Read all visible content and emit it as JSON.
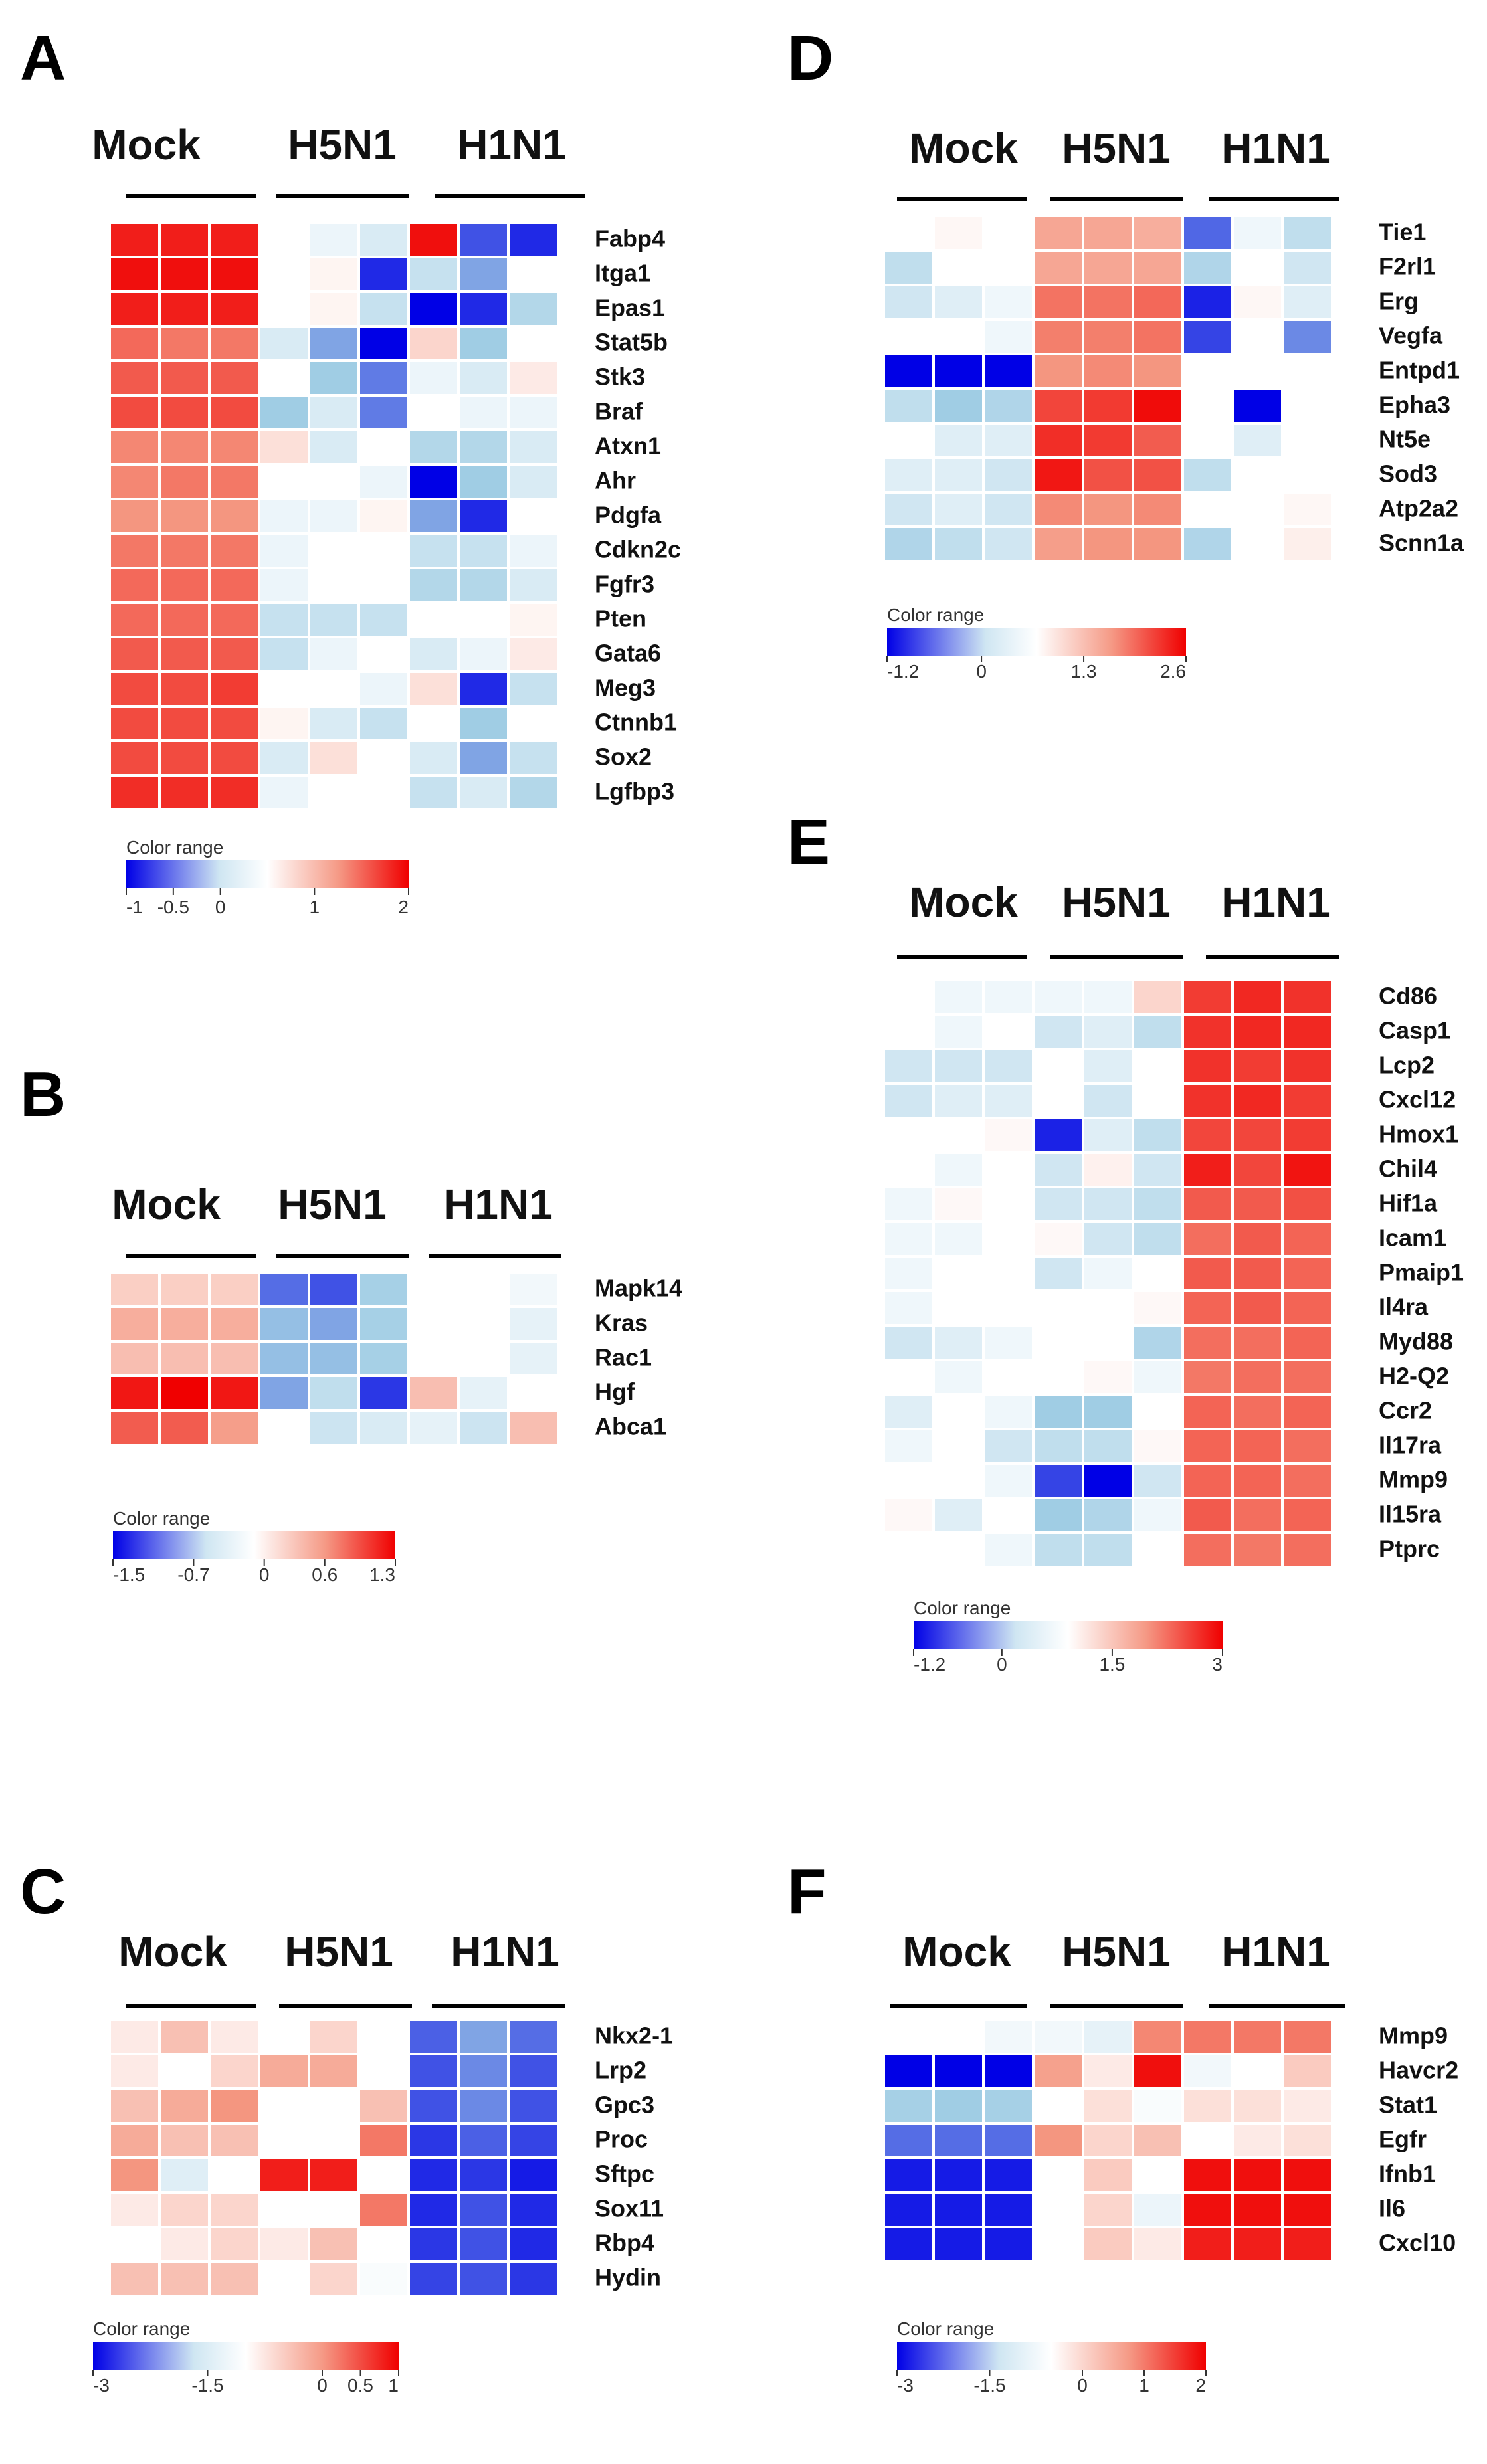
{
  "chart_data": [
    {
      "type": "heatmap",
      "panel": "A",
      "groups": [
        "Mock",
        "H5N1",
        "H1N1"
      ],
      "genes": [
        "Fabp4",
        "Itga1",
        "Epas1",
        "Stat5b",
        "Stk3",
        "Braf",
        "Atxn1",
        "Ahr",
        "Pdgfa",
        "Cdkn2c",
        "Fgfr3",
        "Pten",
        "Gata6",
        "Meg3",
        "Ctnnb1",
        "Sox2",
        "Lgfbp3"
      ],
      "values": [
        [
          1.8,
          1.8,
          1.8,
          0.0,
          -0.1,
          -0.2,
          1.9,
          -0.8,
          -0.9
        ],
        [
          1.9,
          1.9,
          1.9,
          0.0,
          0.1,
          -0.9,
          -0.3,
          -0.6,
          0.0
        ],
        [
          1.8,
          1.8,
          1.8,
          0.0,
          0.1,
          -0.3,
          -1.0,
          -0.9,
          -0.4
        ],
        [
          1.3,
          1.2,
          1.2,
          -0.2,
          -0.6,
          -1.0,
          0.4,
          -0.5,
          0.0
        ],
        [
          1.4,
          1.4,
          1.4,
          0.0,
          -0.5,
          -0.7,
          -0.1,
          -0.2,
          0.2
        ],
        [
          1.5,
          1.5,
          1.5,
          -0.5,
          -0.2,
          -0.7,
          0.0,
          -0.1,
          -0.1
        ],
        [
          1.1,
          1.1,
          1.1,
          0.3,
          -0.2,
          0.0,
          -0.4,
          -0.4,
          -0.2
        ],
        [
          1.1,
          1.2,
          1.2,
          0.0,
          0.0,
          -0.1,
          -1.0,
          -0.5,
          -0.2
        ],
        [
          1.0,
          1.0,
          1.0,
          -0.1,
          -0.1,
          0.1,
          -0.6,
          -0.9,
          0.0
        ],
        [
          1.2,
          1.2,
          1.2,
          -0.1,
          0.0,
          0.0,
          -0.3,
          -0.3,
          -0.1
        ],
        [
          1.3,
          1.3,
          1.3,
          -0.1,
          0.0,
          0.0,
          -0.4,
          -0.4,
          -0.2
        ],
        [
          1.3,
          1.3,
          1.3,
          -0.3,
          -0.3,
          -0.3,
          0.0,
          0.0,
          0.1
        ],
        [
          1.4,
          1.4,
          1.4,
          -0.3,
          -0.1,
          0.0,
          -0.2,
          -0.1,
          0.2
        ],
        [
          1.5,
          1.5,
          1.6,
          0.0,
          0.0,
          -0.1,
          0.3,
          -0.9,
          -0.3
        ],
        [
          1.5,
          1.5,
          1.5,
          0.1,
          -0.2,
          -0.3,
          0.0,
          -0.5,
          0.0
        ],
        [
          1.5,
          1.5,
          1.5,
          -0.2,
          0.3,
          0.0,
          -0.2,
          -0.6,
          -0.3
        ],
        [
          1.7,
          1.7,
          1.7,
          -0.1,
          0.0,
          0.0,
          -0.3,
          -0.2,
          -0.4
        ]
      ],
      "color_range": {
        "min": -1,
        "max": 2,
        "ticks": [
          "-1",
          "-0.5",
          "0",
          "1",
          "2"
        ],
        "tick_values": [
          -1,
          -0.5,
          0,
          1,
          2
        ]
      }
    },
    {
      "type": "heatmap",
      "panel": "B",
      "groups": [
        "Mock",
        "H5N1",
        "H1N1"
      ],
      "genes": [
        "Mapk14",
        "Kras",
        "Rac1",
        "Hgf",
        "Abca1"
      ],
      "values": [
        [
          0.3,
          0.3,
          0.3,
          -1.1,
          -1.2,
          -0.7,
          0.0,
          0.0,
          -0.1
        ],
        [
          0.5,
          0.5,
          0.5,
          -0.8,
          -0.9,
          -0.7,
          0.0,
          0.0,
          -0.2
        ],
        [
          0.4,
          0.4,
          0.4,
          -0.8,
          -0.8,
          -0.7,
          0.0,
          0.0,
          -0.2
        ],
        [
          1.2,
          1.3,
          1.2,
          -0.9,
          -0.5,
          -1.3,
          0.4,
          -0.2,
          0.0
        ],
        [
          0.9,
          0.9,
          0.6,
          0.0,
          -0.4,
          -0.3,
          -0.2,
          -0.4,
          0.4
        ]
      ],
      "color_range": {
        "min": -1.5,
        "max": 1.3,
        "ticks": [
          "-1.5",
          "-0.7",
          "0",
          "0.6",
          "1.3"
        ],
        "tick_values": [
          -1.5,
          -0.7,
          0,
          0.6,
          1.3
        ]
      }
    },
    {
      "type": "heatmap",
      "panel": "C",
      "groups": [
        "Mock",
        "H5N1",
        "H1N1"
      ],
      "genes": [
        "Nkx2-1",
        "Lrp2",
        "Gpc3",
        "Proc",
        "Sftpc",
        "Sox11",
        "Rbp4",
        "Hydin"
      ],
      "values": [
        [
          0.1,
          0.3,
          0.1,
          0.0,
          0.2,
          0.0,
          -2.3,
          -1.8,
          -2.2
        ],
        [
          0.1,
          0.0,
          0.2,
          0.4,
          0.4,
          0.0,
          -2.4,
          -2.0,
          -2.4
        ],
        [
          0.3,
          0.4,
          0.5,
          0.0,
          0.0,
          0.3,
          -2.4,
          -2.0,
          -2.4
        ],
        [
          0.4,
          0.3,
          0.3,
          0.0,
          0.0,
          0.6,
          -2.6,
          -2.3,
          -2.5
        ],
        [
          0.5,
          -0.5,
          0.0,
          0.9,
          0.9,
          0.0,
          -2.7,
          -2.6,
          -2.8
        ],
        [
          0.1,
          0.2,
          0.2,
          0.0,
          0.0,
          0.6,
          -2.7,
          -2.4,
          -2.7
        ],
        [
          0.0,
          0.1,
          0.2,
          0.1,
          0.3,
          0.0,
          -2.6,
          -2.4,
          -2.7
        ],
        [
          0.3,
          0.3,
          0.3,
          0.0,
          0.2,
          -0.1,
          -2.5,
          -2.4,
          -2.6
        ]
      ],
      "color_range": {
        "min": -3,
        "max": 1,
        "ticks": [
          "-3",
          "-1.5",
          "0",
          "0.5",
          "1"
        ],
        "tick_values": [
          -3,
          -1.5,
          0,
          0.5,
          1
        ]
      }
    },
    {
      "type": "heatmap",
      "panel": "D",
      "groups": [
        "Mock",
        "H5N1",
        "H1N1"
      ],
      "genes": [
        "Tie1",
        "F2rl1",
        "Erg",
        "Vegfa",
        "Entpd1",
        "Epha3",
        "Nt5e",
        "Sod3",
        "Atp2a2",
        "Scnn1a"
      ],
      "values": [
        [
          0.0,
          0.1,
          0.0,
          1.1,
          1.1,
          1.0,
          -0.9,
          -0.1,
          -0.4
        ],
        [
          -0.4,
          0.0,
          0.0,
          1.1,
          1.1,
          1.1,
          -0.5,
          0.0,
          -0.3
        ],
        [
          -0.3,
          -0.2,
          -0.1,
          1.6,
          1.6,
          1.7,
          -1.1,
          0.1,
          -0.2
        ],
        [
          0.0,
          0.0,
          -0.1,
          1.5,
          1.5,
          1.6,
          -1.0,
          0.0,
          -0.8
        ],
        [
          -1.2,
          -1.2,
          -1.2,
          1.3,
          1.4,
          1.3,
          0.0,
          0.0,
          0.0
        ],
        [
          -0.4,
          -0.6,
          -0.5,
          2.0,
          2.1,
          2.5,
          0.0,
          -1.2,
          0.0
        ],
        [
          0.0,
          -0.2,
          -0.2,
          2.2,
          2.1,
          1.8,
          0.0,
          -0.2,
          0.0
        ],
        [
          -0.2,
          -0.2,
          -0.3,
          2.4,
          1.9,
          1.9,
          -0.4,
          0.0,
          0.0
        ],
        [
          -0.3,
          -0.2,
          -0.3,
          1.4,
          1.3,
          1.4,
          0.0,
          0.0,
          0.1
        ],
        [
          -0.5,
          -0.4,
          -0.3,
          1.2,
          1.3,
          1.3,
          -0.5,
          0.0,
          0.2
        ]
      ],
      "color_range": {
        "min": -1.2,
        "max": 2.6,
        "ticks": [
          "-1.2",
          "0",
          "1.3",
          "2.6"
        ],
        "tick_values": [
          -1.2,
          0,
          1.3,
          2.6
        ]
      }
    },
    {
      "type": "heatmap",
      "panel": "E",
      "groups": [
        "Mock",
        "H5N1",
        "H1N1"
      ],
      "genes": [
        "Cd86",
        "Casp1",
        "Lcp2",
        "Cxcl12",
        "Hmox1",
        "Chil4",
        "Hif1a",
        "Icam1",
        "Pmaip1",
        "Il4ra",
        "Myd88",
        "H2-Q2",
        "Ccr2",
        "Il17ra",
        "Mmp9",
        "Il15ra",
        "Ptprc"
      ],
      "values": [
        [
          0.0,
          -0.1,
          -0.1,
          -0.1,
          -0.1,
          0.6,
          2.4,
          2.6,
          2.5
        ],
        [
          0.0,
          -0.1,
          0.0,
          -0.3,
          -0.2,
          -0.4,
          2.5,
          2.6,
          2.6
        ],
        [
          -0.3,
          -0.3,
          -0.3,
          0.0,
          -0.2,
          0.0,
          2.5,
          2.4,
          2.5
        ],
        [
          -0.3,
          -0.2,
          -0.2,
          0.0,
          -0.3,
          0.0,
          2.5,
          2.6,
          2.4
        ],
        [
          0.0,
          0.0,
          0.1,
          -1.1,
          -0.2,
          -0.4,
          2.3,
          2.3,
          2.4
        ],
        [
          0.0,
          -0.1,
          0.0,
          -0.3,
          0.2,
          -0.3,
          2.7,
          2.3,
          2.8
        ],
        [
          -0.1,
          0.1,
          0.0,
          -0.3,
          -0.3,
          -0.4,
          2.1,
          2.1,
          2.2
        ],
        [
          -0.1,
          -0.1,
          0.0,
          0.1,
          -0.3,
          -0.4,
          1.9,
          2.1,
          2.0
        ],
        [
          -0.1,
          0.0,
          0.0,
          -0.3,
          -0.1,
          0.0,
          2.1,
          2.1,
          2.0
        ],
        [
          -0.1,
          0.0,
          0.0,
          0.0,
          0.0,
          0.1,
          2.0,
          2.1,
          2.0
        ],
        [
          -0.3,
          -0.2,
          -0.1,
          0.0,
          0.0,
          -0.5,
          1.9,
          1.9,
          2.0
        ],
        [
          0.0,
          -0.1,
          0.0,
          0.0,
          0.1,
          -0.1,
          1.8,
          1.9,
          1.9
        ],
        [
          -0.2,
          0.0,
          -0.1,
          -0.6,
          -0.6,
          0.0,
          2.0,
          1.9,
          2.0
        ],
        [
          -0.1,
          0.0,
          -0.3,
          -0.4,
          -0.4,
          0.1,
          2.0,
          2.0,
          1.9
        ],
        [
          0.0,
          0.0,
          -0.1,
          -1.0,
          -1.3,
          -0.3,
          2.0,
          2.0,
          1.9
        ],
        [
          0.1,
          -0.2,
          0.0,
          -0.6,
          -0.5,
          -0.1,
          2.1,
          1.9,
          2.0
        ],
        [
          0.0,
          0.0,
          -0.1,
          -0.4,
          -0.4,
          0.0,
          1.9,
          1.8,
          1.9
        ]
      ],
      "color_range": {
        "min": -1.2,
        "max": 3,
        "ticks": [
          "-1.2",
          "0",
          "1.5",
          "3"
        ],
        "tick_values": [
          -1.2,
          0,
          1.5,
          3
        ]
      }
    },
    {
      "type": "heatmap",
      "panel": "F",
      "groups": [
        "Mock",
        "H5N1",
        "H1N1"
      ],
      "genes": [
        "Mmp9",
        "Havcr2",
        "Stat1",
        "Egfr",
        "Ifnb1",
        "Il6",
        "Cxcl10"
      ],
      "values": [
        [
          0.0,
          0.0,
          -0.2,
          -0.2,
          -0.4,
          1.1,
          1.2,
          1.2,
          1.2
        ],
        [
          -3.0,
          -3.0,
          -3.0,
          0.9,
          0.2,
          1.9,
          -0.2,
          0.0,
          0.5
        ],
        [
          -1.4,
          -1.5,
          -1.4,
          0.0,
          0.3,
          -0.1,
          0.3,
          0.3,
          0.2
        ],
        [
          -2.2,
          -2.2,
          -2.2,
          1.0,
          0.4,
          0.6,
          0.0,
          0.2,
          0.3
        ],
        [
          -2.8,
          -2.8,
          -2.8,
          0.0,
          0.5,
          0.0,
          1.9,
          1.9,
          1.9
        ],
        [
          -2.8,
          -2.8,
          -2.8,
          0.0,
          0.4,
          -0.3,
          1.9,
          1.9,
          1.9
        ],
        [
          -2.8,
          -2.8,
          -2.8,
          0.0,
          0.5,
          0.2,
          1.8,
          1.8,
          1.8
        ]
      ],
      "color_range": {
        "min": -3,
        "max": 2,
        "ticks": [
          "-3",
          "-1.5",
          "0",
          "1",
          "2"
        ],
        "tick_values": [
          -3,
          -1.5,
          0,
          1,
          2
        ]
      }
    }
  ],
  "color_range_label": "Color range"
}
